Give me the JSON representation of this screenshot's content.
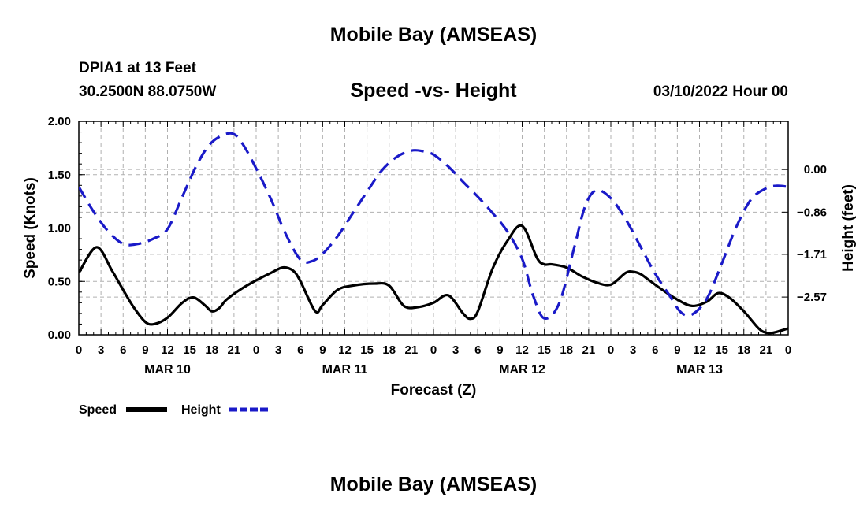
{
  "header": {
    "title": "Mobile Bay (AMSEAS)",
    "station": "DPIA1 at 13 Feet",
    "coords": "30.2500N  88.0750W",
    "subtitle": "Speed -vs- Height",
    "date": "03/10/2022 Hour 00"
  },
  "footer": {
    "title": "Mobile Bay (AMSEAS)"
  },
  "colors": {
    "speed": "#000000",
    "height": "#1a1ac8",
    "grid": "#b0b0b0"
  },
  "chart_data": {
    "type": "line",
    "xlabel": "Forecast (Z)",
    "ylabel": "Speed (Knots)",
    "y2label": "Height (feet)",
    "xlim": [
      0,
      96
    ],
    "ylim": [
      0,
      2.0
    ],
    "y2lim": [
      -3.33,
      0.97
    ],
    "x_tick_labels": [
      "0",
      "3",
      "6",
      "9",
      "12",
      "15",
      "18",
      "21",
      "0",
      "3",
      "6",
      "9",
      "12",
      "15",
      "18",
      "21",
      "0",
      "3",
      "6",
      "9",
      "12",
      "15",
      "18",
      "21",
      "0",
      "3",
      "6",
      "9",
      "12",
      "15",
      "18",
      "21",
      "0"
    ],
    "date_labels": [
      {
        "label": "MAR 10",
        "x": 12
      },
      {
        "label": "MAR 11",
        "x": 36
      },
      {
        "label": "MAR 12",
        "x": 60
      },
      {
        "label": "MAR 13",
        "x": 84
      }
    ],
    "y_ticks": [
      {
        "value": 0.0,
        "label": "0.00"
      },
      {
        "value": 0.5,
        "label": "0.50"
      },
      {
        "value": 1.0,
        "label": "1.00"
      },
      {
        "value": 1.5,
        "label": "1.50"
      },
      {
        "value": 2.0,
        "label": "2.00"
      }
    ],
    "y2_ticks": [
      {
        "value": 0.0,
        "label": "0.00"
      },
      {
        "value": -0.86,
        "label": "−0.86"
      },
      {
        "value": -1.71,
        "label": "−1.71"
      },
      {
        "value": -2.57,
        "label": "−2.57"
      }
    ],
    "series": [
      {
        "name": "Speed",
        "axis": "left",
        "x": [
          0,
          2.4,
          4.5,
          6,
          7.5,
          9,
          10.2,
          12,
          14,
          15.5,
          17,
          18,
          19,
          20,
          22,
          24,
          26,
          27.6,
          29,
          30,
          32,
          33,
          35,
          37,
          40,
          42,
          44,
          46,
          48,
          50,
          52,
          53,
          54,
          56,
          58,
          60,
          62,
          63,
          64,
          66,
          68,
          70,
          72,
          74,
          75,
          76,
          77,
          79,
          81,
          83,
          85,
          86.5,
          88,
          90,
          92,
          93,
          94,
          96
        ],
        "values": [
          0.58,
          0.82,
          0.6,
          0.42,
          0.25,
          0.12,
          0.1,
          0.16,
          0.3,
          0.35,
          0.28,
          0.22,
          0.25,
          0.33,
          0.43,
          0.51,
          0.58,
          0.63,
          0.6,
          0.5,
          0.22,
          0.28,
          0.42,
          0.46,
          0.48,
          0.46,
          0.27,
          0.26,
          0.3,
          0.37,
          0.2,
          0.15,
          0.22,
          0.62,
          0.88,
          1.02,
          0.72,
          0.66,
          0.66,
          0.63,
          0.55,
          0.49,
          0.47,
          0.58,
          0.59,
          0.57,
          0.52,
          0.42,
          0.33,
          0.27,
          0.31,
          0.39,
          0.35,
          0.22,
          0.06,
          0.02,
          0.02,
          0.06
        ]
      },
      {
        "name": "Height",
        "axis": "right",
        "x": [
          0,
          2,
          4,
          6,
          8,
          10,
          12,
          14,
          16,
          18,
          20.5,
          22,
          24,
          26,
          28,
          30,
          31.5,
          33,
          35,
          37,
          39,
          41,
          43,
          45,
          46.5,
          48,
          50,
          52,
          54,
          56,
          58,
          60,
          61.5,
          63,
          65,
          67,
          68.5,
          70,
          72,
          74,
          76,
          78,
          80,
          81.5,
          83,
          85,
          87,
          89,
          91,
          93,
          94.5,
          96
        ],
        "values": [
          -0.35,
          -0.85,
          -1.25,
          -1.5,
          -1.5,
          -1.4,
          -1.2,
          -0.55,
          0.1,
          0.55,
          0.73,
          0.55,
          0.02,
          -0.6,
          -1.3,
          -1.82,
          -1.85,
          -1.7,
          -1.35,
          -0.9,
          -0.45,
          -0.02,
          0.25,
          0.38,
          0.37,
          0.3,
          0.06,
          -0.25,
          -0.55,
          -0.88,
          -1.25,
          -1.8,
          -2.55,
          -3.0,
          -2.7,
          -1.6,
          -0.75,
          -0.42,
          -0.58,
          -1.0,
          -1.55,
          -2.1,
          -2.55,
          -2.88,
          -2.92,
          -2.6,
          -1.9,
          -1.15,
          -0.6,
          -0.38,
          -0.33,
          -0.35
        ]
      }
    ]
  },
  "legend": {
    "speed": "Speed",
    "height": "Height"
  }
}
